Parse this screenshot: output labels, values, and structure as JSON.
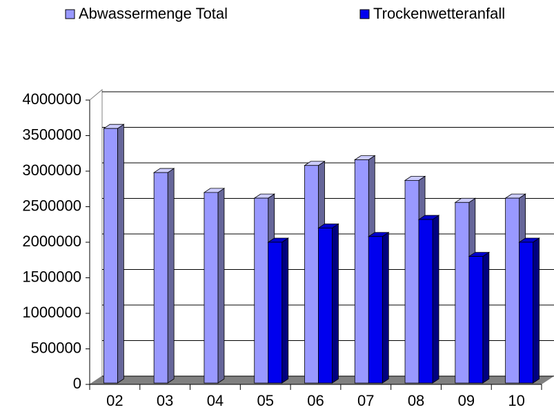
{
  "chart_data": {
    "type": "bar3d",
    "categories": [
      "02",
      "03",
      "04",
      "05",
      "06",
      "07",
      "08",
      "09",
      "10"
    ],
    "series": [
      {
        "name": "Abwassermenge Total",
        "color": "#9999ff",
        "values": [
          3600000,
          2980000,
          2700000,
          2620000,
          3080000,
          3160000,
          2870000,
          2560000,
          2620000
        ]
      },
      {
        "name": "Trockenwetteranfall",
        "color": "#0000ee",
        "values": [
          null,
          null,
          null,
          2000000,
          2200000,
          2080000,
          2320000,
          1800000,
          2000000
        ]
      }
    ],
    "ylim": [
      0,
      4000000
    ],
    "yticks": [
      0,
      500000,
      1000000,
      1500000,
      2000000,
      2500000,
      3000000,
      3500000,
      4000000
    ],
    "grid": true
  }
}
